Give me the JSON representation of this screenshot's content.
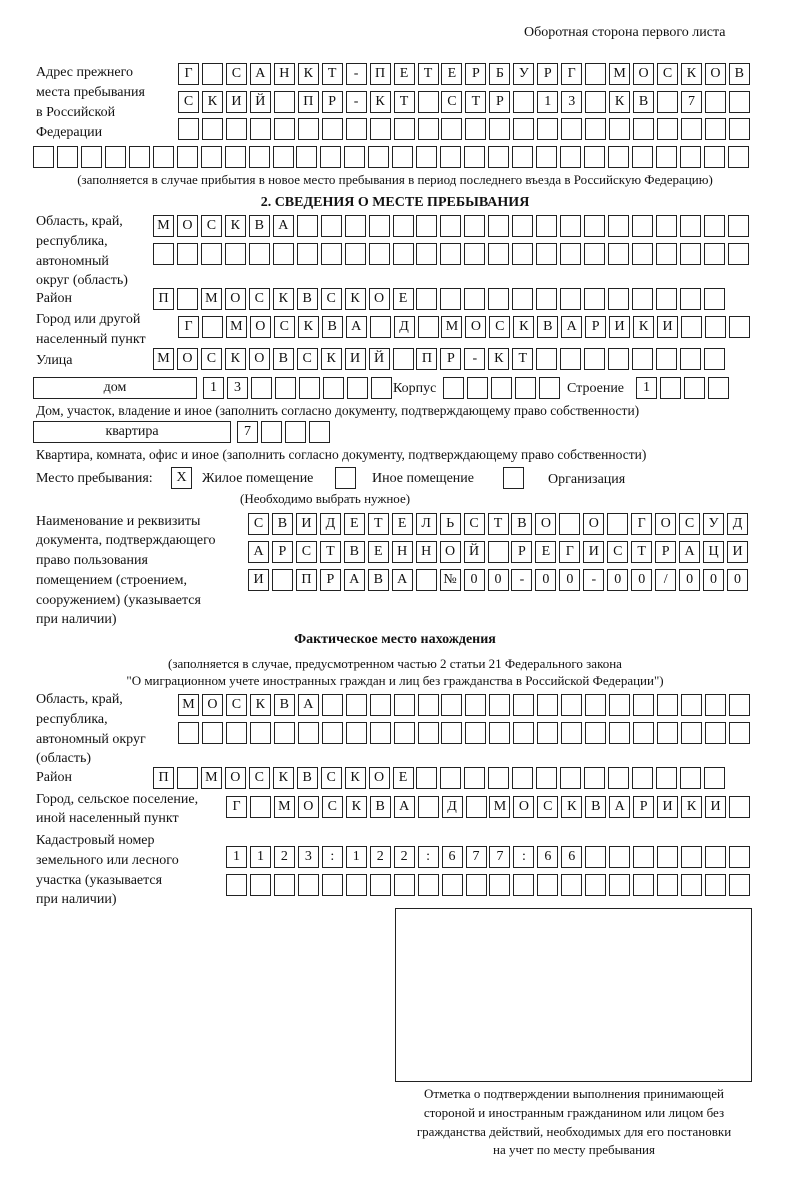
{
  "header": "Оборотная сторона первого листа",
  "prev_address": {
    "label": [
      "Адрес прежнего",
      "места пребывания",
      "в Российской",
      "Федерации"
    ],
    "rows": [
      [
        "Г",
        " ",
        "С",
        "А",
        "Н",
        "К",
        "Т",
        "-",
        "П",
        "Е",
        "Т",
        "Е",
        "Р",
        "Б",
        "У",
        "Р",
        "Г",
        " ",
        "М",
        "О",
        "С",
        "К",
        "О",
        "В"
      ],
      [
        "С",
        "К",
        "И",
        "Й",
        " ",
        "П",
        "Р",
        "-",
        "К",
        "Т",
        " ",
        "С",
        "Т",
        "Р",
        " ",
        "1",
        "3",
        " ",
        "К",
        "В",
        " ",
        "7",
        " ",
        " "
      ],
      [
        " ",
        " ",
        " ",
        " ",
        " ",
        " ",
        " ",
        " ",
        " ",
        " ",
        " ",
        " ",
        " ",
        " ",
        " ",
        " ",
        " ",
        " ",
        " ",
        " ",
        " ",
        " ",
        " ",
        " "
      ],
      [
        " ",
        " ",
        " ",
        " ",
        " ",
        " ",
        " ",
        " ",
        " ",
        " ",
        " ",
        " ",
        " ",
        " ",
        " ",
        " ",
        " ",
        " ",
        " ",
        " ",
        " ",
        " ",
        " ",
        " ",
        " ",
        " ",
        " ",
        " ",
        " ",
        " "
      ]
    ],
    "note": "(заполняется в случае прибытия в новое место пребывания в период последнего въезда в Российскую Федерацию)"
  },
  "section2": {
    "title": "2. СВЕДЕНИЯ О МЕСТЕ ПРЕБЫВАНИЯ",
    "region_label": [
      "Область, край,",
      "республика,",
      "автономный",
      "округ (область)"
    ],
    "region_rows": [
      [
        "М",
        "О",
        "С",
        "К",
        "В",
        "А",
        " ",
        " ",
        " ",
        " ",
        " ",
        " ",
        " ",
        " ",
        " ",
        " ",
        " ",
        " ",
        " ",
        " ",
        " ",
        " ",
        " ",
        " ",
        " "
      ],
      [
        " ",
        " ",
        " ",
        " ",
        " ",
        " ",
        " ",
        " ",
        " ",
        " ",
        " ",
        " ",
        " ",
        " ",
        " ",
        " ",
        " ",
        " ",
        " ",
        " ",
        " ",
        " ",
        " ",
        " ",
        " "
      ]
    ],
    "district_label": "Район",
    "district": [
      "П",
      " ",
      "М",
      "О",
      "С",
      "К",
      "В",
      "С",
      "К",
      "О",
      "Е",
      " ",
      " ",
      " ",
      " ",
      " ",
      " ",
      " ",
      " ",
      " ",
      " ",
      " ",
      " ",
      " "
    ],
    "city_label": [
      "Город или другой",
      "населенный пункт"
    ],
    "city": [
      "Г",
      " ",
      "М",
      "О",
      "С",
      "К",
      "В",
      "А",
      " ",
      "Д",
      " ",
      "М",
      "О",
      "С",
      "К",
      "В",
      "А",
      "Р",
      "И",
      "К",
      "И",
      " ",
      " ",
      " "
    ],
    "street_label": "Улица",
    "street": [
      "М",
      "О",
      "С",
      "К",
      "О",
      "В",
      "С",
      "К",
      "И",
      "Й",
      " ",
      "П",
      "Р",
      "-",
      "К",
      "Т",
      " ",
      " ",
      " ",
      " ",
      " ",
      " ",
      " ",
      " "
    ],
    "house_type": "дом",
    "house": [
      "1",
      "3",
      " ",
      " ",
      " ",
      " ",
      " ",
      " "
    ],
    "korpus_label": "Корпус",
    "korpus": [
      " ",
      " ",
      " ",
      " ",
      " "
    ],
    "building_label": "Строение",
    "building": [
      "1",
      " ",
      " ",
      " "
    ],
    "house_note": "Дом, участок, владение и иное (заполнить согласно документу, подтверждающему право собственности)",
    "apt_type": "квартира",
    "apt": [
      "7",
      " ",
      " ",
      " "
    ],
    "apt_note": "Квартира, комната, офис и иное (заполнить согласно документу, подтверждающему право собственности)",
    "place_label": "Место пребывания:",
    "place_options": [
      {
        "label": "Жилое помещение",
        "mark": "X",
        "checked": true
      },
      {
        "label": "Иное помещение",
        "mark": "",
        "checked": false
      },
      {
        "label": "Организация",
        "mark": "",
        "checked": false
      }
    ],
    "place_note": "(Необходимо выбрать нужное)",
    "doc_label": [
      "Наименование и реквизиты",
      "документа, подтверждающего",
      "право пользования",
      "помещением (строением,",
      "сооружением) (указывается",
      "при наличии)"
    ],
    "doc_rows": [
      [
        "С",
        "В",
        "И",
        "Д",
        "Е",
        "Т",
        "Е",
        "Л",
        "Ь",
        "С",
        "Т",
        "В",
        "О",
        " ",
        "О",
        " ",
        "Г",
        "О",
        "С",
        "У",
        "Д"
      ],
      [
        "А",
        "Р",
        "С",
        "Т",
        "В",
        "Е",
        "Н",
        "Н",
        "О",
        "Й",
        " ",
        "Р",
        "Е",
        "Г",
        "И",
        "С",
        "Т",
        "Р",
        "А",
        "Ц",
        "И"
      ],
      [
        "И",
        " ",
        "П",
        "Р",
        "А",
        "В",
        "А",
        " ",
        "№",
        "0",
        "0",
        "-",
        "0",
        "0",
        "-",
        "0",
        "0",
        "/",
        "0",
        "0",
        "0"
      ]
    ]
  },
  "actual": {
    "title": "Фактическое место нахождения",
    "note": [
      "(заполняется в случае, предусмотренном частью 2 статьи 21 Федерального закона",
      "\"О миграционном учете иностранных граждан и лиц без гражданства в Российской Федерации\")"
    ],
    "region_label": [
      "Область, край,",
      "республика,",
      "автономный округ",
      "(область)"
    ],
    "region_rows": [
      [
        "М",
        "О",
        "С",
        "К",
        "В",
        "А",
        " ",
        " ",
        " ",
        " ",
        " ",
        " ",
        " ",
        " ",
        " ",
        " ",
        " ",
        " ",
        " ",
        " ",
        " ",
        " ",
        " ",
        " "
      ],
      [
        " ",
        " ",
        " ",
        " ",
        " ",
        " ",
        " ",
        " ",
        " ",
        " ",
        " ",
        " ",
        " ",
        " ",
        " ",
        " ",
        " ",
        " ",
        " ",
        " ",
        " ",
        " ",
        " ",
        " "
      ]
    ],
    "district_label": "Район",
    "district": [
      "П",
      " ",
      "М",
      "О",
      "С",
      "К",
      "В",
      "С",
      "К",
      "О",
      "Е",
      " ",
      " ",
      " ",
      " ",
      " ",
      " ",
      " ",
      " ",
      " ",
      " ",
      " ",
      " ",
      " "
    ],
    "city_label": [
      "Город, сельское поселение,",
      "иной населенный пункт"
    ],
    "city": [
      "Г",
      " ",
      "М",
      "О",
      "С",
      "К",
      "В",
      "А",
      " ",
      "Д",
      " ",
      "М",
      "О",
      "С",
      "К",
      "В",
      "А",
      "Р",
      "И",
      "К",
      "И",
      " "
    ],
    "cadastre_label": [
      "Кадастровый номер",
      "земельного или лесного",
      "участка (указывается",
      "при наличии)"
    ],
    "cadastre_rows": [
      [
        "1",
        "1",
        "2",
        "3",
        ":",
        "1",
        "2",
        "2",
        ":",
        "6",
        "7",
        "7",
        ":",
        "6",
        "6",
        " ",
        " ",
        " ",
        " ",
        " ",
        " ",
        " "
      ],
      [
        " ",
        " ",
        " ",
        " ",
        " ",
        " ",
        " ",
        " ",
        " ",
        " ",
        " ",
        " ",
        " ",
        " ",
        " ",
        " ",
        " ",
        " ",
        " ",
        " ",
        " ",
        " "
      ]
    ]
  },
  "stamp_caption": [
    "Отметка о подтверждении выполнения принимающей",
    "стороной и иностранным гражданином или лицом без",
    "гражданства действий, необходимых для его постановки",
    "на учет по месту пребывания"
  ]
}
